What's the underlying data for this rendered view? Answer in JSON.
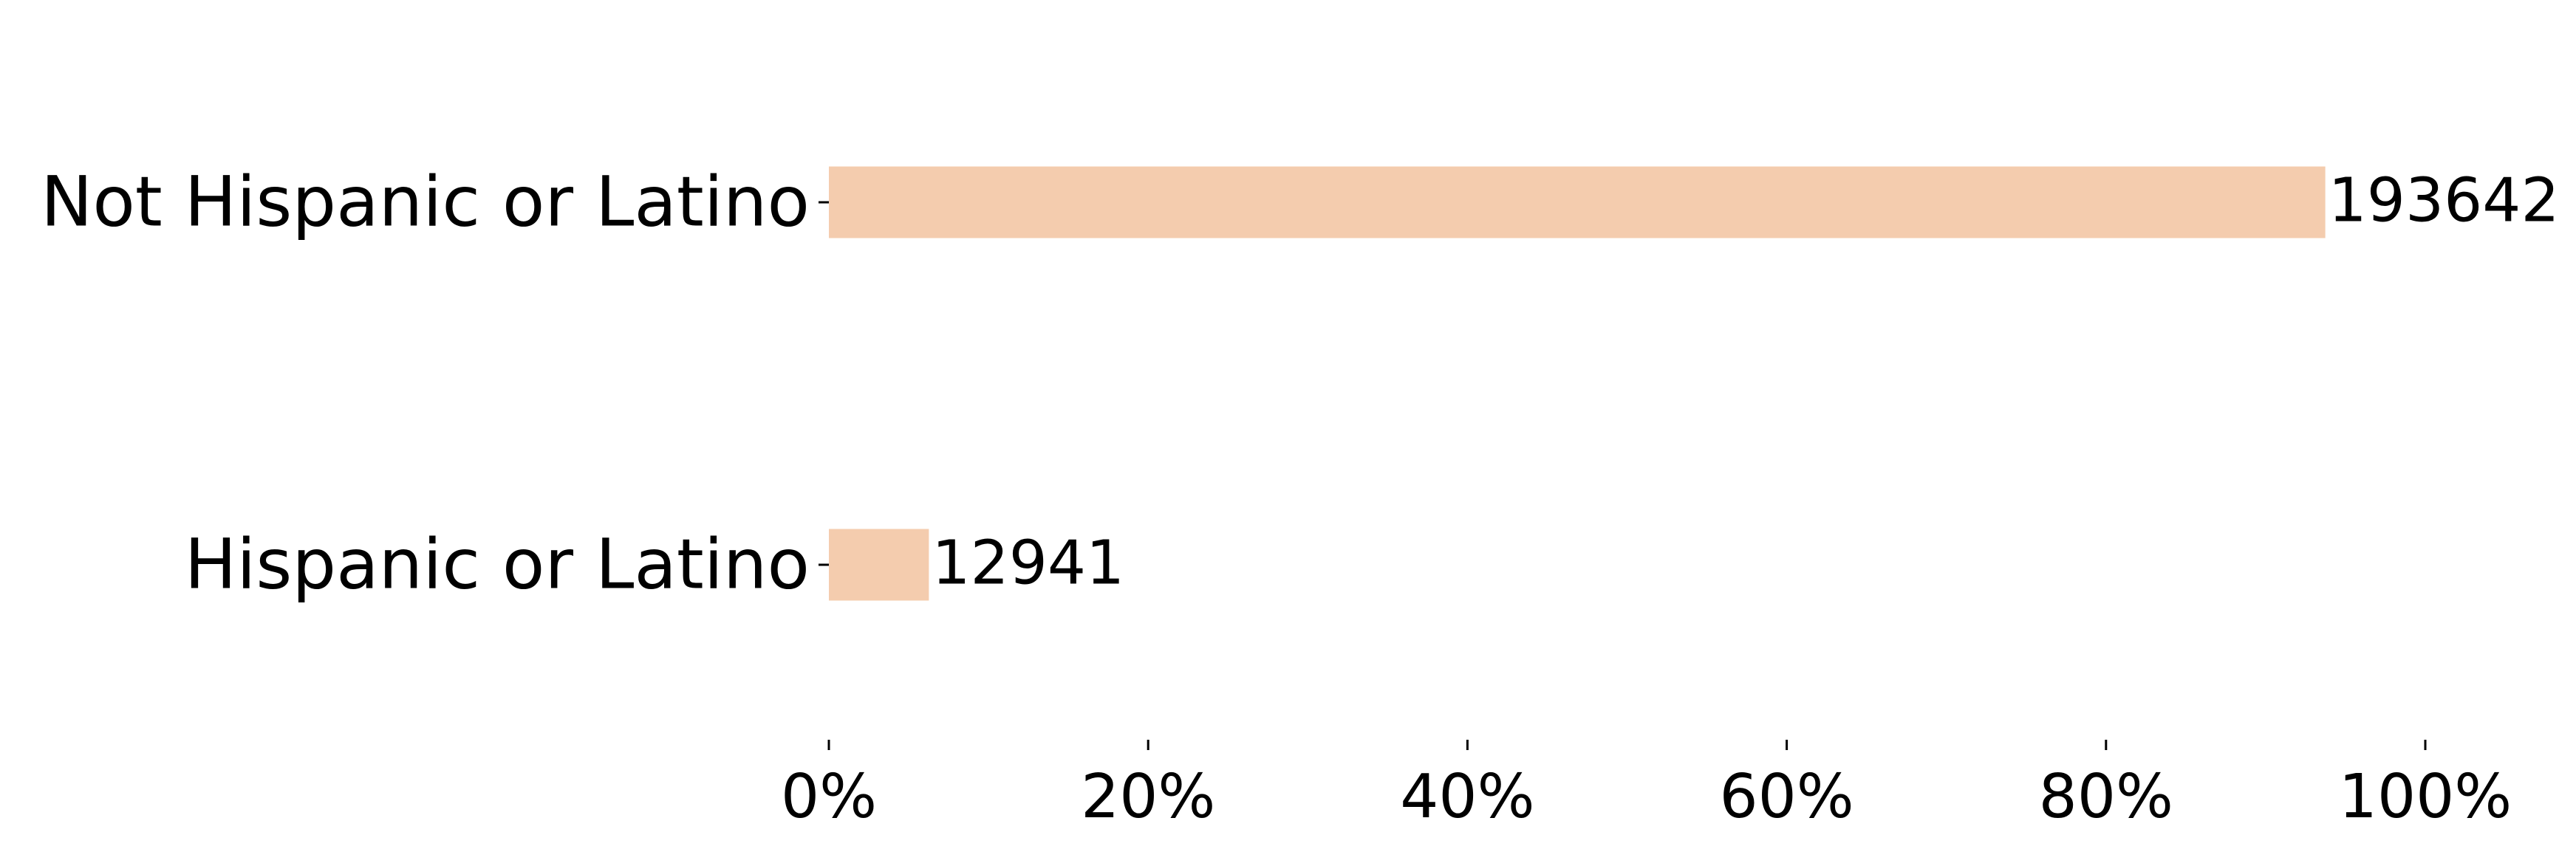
{
  "chart_data": {
    "type": "bar",
    "orientation": "horizontal",
    "categories": [
      "Not Hispanic or Latino",
      "Hispanic or Latino"
    ],
    "values": [
      193642,
      12941
    ],
    "value_labels": [
      "193642",
      "12941"
    ],
    "shares_percent": [
      93.7,
      6.3
    ],
    "bar_color": "#f4ccae",
    "x_axis": {
      "format": "percent",
      "range": [
        0,
        100
      ],
      "ticks": [
        0,
        20,
        40,
        60,
        80,
        100
      ],
      "tick_labels": [
        "0%",
        "20%",
        "40%",
        "60%",
        "80%",
        "100%"
      ]
    },
    "title": "",
    "xlabel": "",
    "ylabel": "",
    "grid": false,
    "legend": "none",
    "spines": "none"
  }
}
